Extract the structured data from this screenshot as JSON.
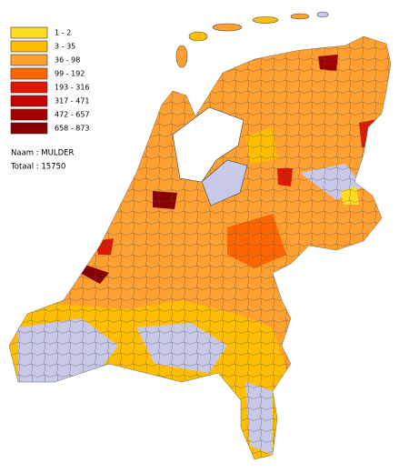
{
  "legend": {
    "items": [
      {
        "label": "1 - 2",
        "color": "#ffdd22"
      },
      {
        "label": "3 - 35",
        "color": "#ffbf00"
      },
      {
        "label": "36 - 98",
        "color": "#ffa030"
      },
      {
        "label": "99 - 192",
        "color": "#ff6600"
      },
      {
        "label": "193 - 316",
        "color": "#dd1a00"
      },
      {
        "label": "317 - 471",
        "color": "#c40000"
      },
      {
        "label": "472 - 657",
        "color": "#a30000"
      },
      {
        "label": "658 - 873",
        "color": "#860000"
      }
    ]
  },
  "info": {
    "name": "Naam : MULDER",
    "total": "Totaal : 15750"
  }
}
